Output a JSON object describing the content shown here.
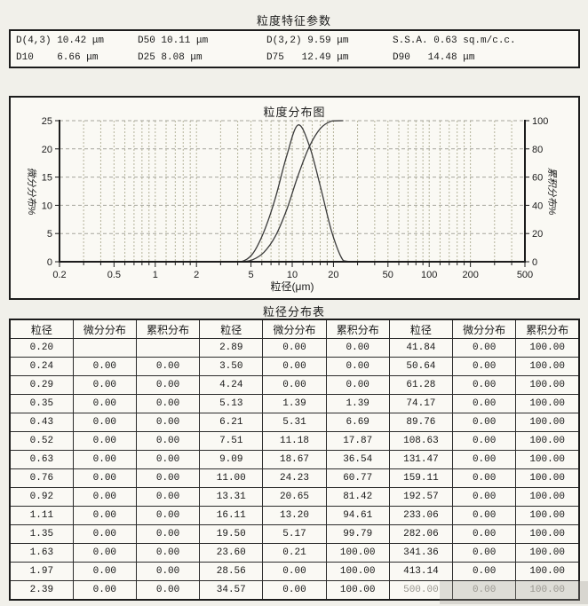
{
  "parameters": {
    "title": "粒度特征参数",
    "rows": [
      [
        "D(4,3) 10.42 μm",
        "D50 10.11 μm",
        "D(3,2) 9.59 μm",
        "S.S.A. 0.63 sq.m/c.c."
      ],
      [
        "D10    6.66 μm",
        "D25 8.08 μm",
        "D75   12.49 μm",
        "D90   14.48 μm"
      ]
    ]
  },
  "chart_data": {
    "type": "line",
    "title": "粒度分布图",
    "xlabel": "粒径(μm)",
    "x_scale": "log",
    "x_range": [
      0.2,
      500
    ],
    "x_major_ticks": [
      0.2,
      0.5,
      1,
      2,
      5,
      10,
      20,
      50,
      100,
      200,
      500
    ],
    "x_minor_ticks": [
      0.3,
      0.4,
      0.6,
      0.7,
      0.8,
      0.9,
      1.2,
      1.4,
      1.6,
      1.8,
      3,
      4,
      6,
      7,
      8,
      9,
      12,
      14,
      16,
      18,
      30,
      40,
      60,
      70,
      80,
      90,
      120,
      140,
      160,
      180,
      300,
      400
    ],
    "y_left": {
      "label": "微分分布%",
      "range": [
        0,
        25
      ],
      "ticks": [
        0,
        5,
        10,
        15,
        20,
        25
      ]
    },
    "y_right": {
      "label": "累积分布%",
      "range": [
        0,
        100
      ],
      "ticks": [
        0,
        20,
        40,
        60,
        80,
        100
      ]
    },
    "grid": true,
    "legend": "none",
    "series": [
      {
        "name": "微分分布",
        "axis": "left",
        "x": [
          2.89,
          3.5,
          4.24,
          5.13,
          6.21,
          7.51,
          9.09,
          11.0,
          13.31,
          16.11,
          19.5,
          23.6,
          28.56
        ],
        "y": [
          0,
          0,
          0,
          1.39,
          5.31,
          11.18,
          18.67,
          24.23,
          20.65,
          13.2,
          5.17,
          0.21,
          0
        ]
      },
      {
        "name": "累积分布",
        "axis": "right",
        "x": [
          2.89,
          3.5,
          4.24,
          5.13,
          6.21,
          7.51,
          9.09,
          11.0,
          13.31,
          16.11,
          19.5,
          23.6
        ],
        "y": [
          0,
          0,
          0,
          1.39,
          6.69,
          17.87,
          36.54,
          60.77,
          81.42,
          94.61,
          99.79,
          100.0
        ]
      }
    ],
    "colors": {
      "curve": "#3a3a3a",
      "grid_vertical": "#b4b39a",
      "grid_horizontal": "#a6a59c",
      "axis": "#1c1c1c"
    }
  },
  "table": {
    "title": "粒径分布表",
    "headers": [
      "粒径",
      "微分分布",
      "累积分布",
      "粒径",
      "微分分布",
      "累积分布",
      "粒径",
      "微分分布",
      "累积分布"
    ],
    "rows": [
      [
        "0.20",
        "",
        "",
        "2.89",
        "0.00",
        "0.00",
        "41.84",
        "0.00",
        "100.00"
      ],
      [
        "0.24",
        "0.00",
        "0.00",
        "3.50",
        "0.00",
        "0.00",
        "50.64",
        "0.00",
        "100.00"
      ],
      [
        "0.29",
        "0.00",
        "0.00",
        "4.24",
        "0.00",
        "0.00",
        "61.28",
        "0.00",
        "100.00"
      ],
      [
        "0.35",
        "0.00",
        "0.00",
        "5.13",
        "1.39",
        "1.39",
        "74.17",
        "0.00",
        "100.00"
      ],
      [
        "0.43",
        "0.00",
        "0.00",
        "6.21",
        "5.31",
        "6.69",
        "89.76",
        "0.00",
        "100.00"
      ],
      [
        "0.52",
        "0.00",
        "0.00",
        "7.51",
        "11.18",
        "17.87",
        "108.63",
        "0.00",
        "100.00"
      ],
      [
        "0.63",
        "0.00",
        "0.00",
        "9.09",
        "18.67",
        "36.54",
        "131.47",
        "0.00",
        "100.00"
      ],
      [
        "0.76",
        "0.00",
        "0.00",
        "11.00",
        "24.23",
        "60.77",
        "159.11",
        "0.00",
        "100.00"
      ],
      [
        "0.92",
        "0.00",
        "0.00",
        "13.31",
        "20.65",
        "81.42",
        "192.57",
        "0.00",
        "100.00"
      ],
      [
        "1.11",
        "0.00",
        "0.00",
        "16.11",
        "13.20",
        "94.61",
        "233.06",
        "0.00",
        "100.00"
      ],
      [
        "1.35",
        "0.00",
        "0.00",
        "19.50",
        "5.17",
        "99.79",
        "282.06",
        "0.00",
        "100.00"
      ],
      [
        "1.63",
        "0.00",
        "0.00",
        "23.60",
        "0.21",
        "100.00",
        "341.36",
        "0.00",
        "100.00"
      ],
      [
        "1.97",
        "0.00",
        "0.00",
        "28.56",
        "0.00",
        "100.00",
        "413.14",
        "0.00",
        "100.00"
      ],
      [
        "2.39",
        "0.00",
        "0.00",
        "34.57",
        "0.00",
        "100.00",
        "500.00",
        "0.00",
        "100.00"
      ]
    ],
    "faded_cells": [
      [
        13,
        6
      ],
      [
        13,
        7
      ],
      [
        13,
        8
      ]
    ]
  }
}
